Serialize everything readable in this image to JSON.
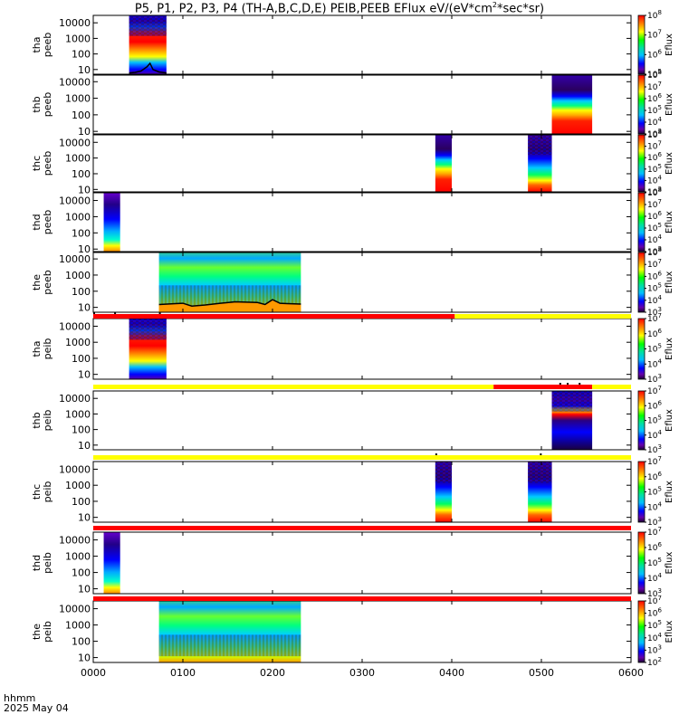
{
  "title_main": "P5, P1, P2, P3, P4 (TH-A,B,C,D,E) PEIB,PEEB EFlux eV/(eV*cm",
  "title_sup": "2",
  "title_end": "*sec*sr)",
  "x_footer": {
    "line1": "hhmm",
    "line2": "2025 May 04"
  },
  "colors": {
    "red": "#ff0000",
    "yellow": "#ffff00",
    "orange": "#ff9900",
    "black": "#000000"
  },
  "chart_data": {
    "type": "heatmap",
    "x_axis": {
      "unit": "hhmm",
      "range_min": [
        0,
        360
      ],
      "tick_labels": [
        "0000",
        "0100",
        "0200",
        "0300",
        "0400",
        "0500",
        "0600"
      ],
      "tick_values_min": [
        0,
        60,
        120,
        180,
        240,
        300,
        360
      ]
    },
    "y_scale": "log",
    "y_tick_labels": [
      "10",
      "100",
      "1000",
      "10000"
    ],
    "colorbar_label": "Eflux",
    "panels": [
      {
        "label": [
          "tha",
          "peeb"
        ],
        "yrange": [
          5,
          30000
        ],
        "yticks": [
          10,
          100,
          1000,
          10000
        ],
        "cbar": [
          5,
          8
        ],
        "blocks": [
          {
            "start_min": 24,
            "end_min": 49,
            "profile": "hot"
          }
        ],
        "line": {
          "points": [
            [
              24,
              6
            ],
            [
              28,
              6.5
            ],
            [
              32,
              8
            ],
            [
              36,
              15
            ],
            [
              38,
              25
            ],
            [
              40,
              10
            ],
            [
              44,
              7
            ],
            [
              49,
              6
            ]
          ]
        }
      },
      {
        "label": [
          "thb",
          "peeb"
        ],
        "yrange": [
          7,
          25000
        ],
        "yticks": [
          10,
          100,
          1000,
          10000
        ],
        "cbar": [
          3,
          8
        ],
        "blocks": [
          {
            "start_min": 307,
            "end_min": 334,
            "profile": "redlow"
          }
        ]
      },
      {
        "label": [
          "thc",
          "peeb"
        ],
        "yrange": [
          7,
          30000
        ],
        "yticks": [
          10,
          100,
          1000,
          10000
        ],
        "cbar": [
          3,
          8
        ],
        "blocks": [
          {
            "start_min": 229,
            "end_min": 240,
            "profile": "redlow"
          },
          {
            "start_min": 291,
            "end_min": 307,
            "profile": "cold"
          }
        ]
      },
      {
        "label": [
          "thd",
          "peeb"
        ],
        "yrange": [
          7,
          30000
        ],
        "yticks": [
          10,
          100,
          1000,
          10000
        ],
        "cbar": [
          3,
          8
        ],
        "blocks": [
          {
            "start_min": 7,
            "end_min": 18,
            "profile": "warm"
          }
        ]
      },
      {
        "label": [
          "the",
          "peeb"
        ],
        "yrange": [
          5,
          25000
        ],
        "yticks": [
          10,
          100,
          1000,
          10000
        ],
        "cbar": [
          3,
          8
        ],
        "blocks": [
          {
            "start_min": 44,
            "end_min": 139,
            "profile": "mixed"
          }
        ],
        "line": {
          "points": [
            [
              44,
              15
            ],
            [
              55,
              17
            ],
            [
              60,
              18
            ],
            [
              66,
              12
            ],
            [
              75,
              14
            ],
            [
              85,
              18
            ],
            [
              95,
              22
            ],
            [
              110,
              20
            ],
            [
              115,
              15
            ],
            [
              120,
              30
            ],
            [
              125,
              18
            ],
            [
              130,
              17
            ],
            [
              139,
              16
            ]
          ]
        }
      },
      {
        "label": [
          "tha",
          "peib"
        ],
        "yrange": [
          5,
          30000
        ],
        "yticks": [
          10,
          100,
          1000,
          10000
        ],
        "cbar": [
          3,
          7
        ],
        "blocks": [
          {
            "start_min": 24,
            "end_min": 49,
            "profile": "hot"
          }
        ]
      },
      {
        "label": [
          "thb",
          "peib"
        ],
        "yrange": [
          5,
          30000
        ],
        "yticks": [
          10,
          100,
          1000,
          10000
        ],
        "cbar": [
          3,
          7
        ],
        "blocks": [
          {
            "start_min": 307,
            "end_min": 334,
            "profile": "striped"
          }
        ]
      },
      {
        "label": [
          "thc",
          "peib"
        ],
        "yrange": [
          5,
          30000
        ],
        "yticks": [
          10,
          100,
          1000,
          10000
        ],
        "cbar": [
          3,
          7
        ],
        "blocks": [
          {
            "start_min": 229,
            "end_min": 240,
            "profile": "cold"
          },
          {
            "start_min": 291,
            "end_min": 307,
            "profile": "cold"
          }
        ]
      },
      {
        "label": [
          "thd",
          "peib"
        ],
        "yrange": [
          5,
          30000
        ],
        "yticks": [
          10,
          100,
          1000,
          10000
        ],
        "cbar": [
          3,
          7
        ],
        "blocks": [
          {
            "start_min": 7,
            "end_min": 18,
            "profile": "warm"
          }
        ]
      },
      {
        "label": [
          "the",
          "peib"
        ],
        "yrange": [
          5,
          30000
        ],
        "yticks": [
          10,
          100,
          1000,
          10000
        ],
        "cbar": [
          2,
          7
        ],
        "blocks": [
          {
            "start_min": 44,
            "end_min": 139,
            "profile": "mixed"
          }
        ]
      }
    ],
    "status_bars": [
      {
        "between_panels": [
          5,
          6
        ],
        "segments": [
          {
            "start_min": 0,
            "end_min": 242,
            "color": "red"
          },
          {
            "start_min": 242,
            "end_min": 360,
            "color": "yellow"
          }
        ],
        "ticks_min": [
          0,
          14,
          44
        ]
      },
      {
        "between_panels": [
          6,
          7
        ],
        "segments": [
          {
            "start_min": 0,
            "end_min": 268,
            "color": "yellow"
          },
          {
            "start_min": 268,
            "end_min": 334,
            "color": "red"
          },
          {
            "start_min": 334,
            "end_min": 360,
            "color": "yellow"
          }
        ],
        "ticks_min": [
          312,
          317,
          325
        ]
      },
      {
        "between_panels": [
          7,
          8
        ],
        "segments": [
          {
            "start_min": 0,
            "end_min": 360,
            "color": "yellow"
          }
        ],
        "ticks_min": [
          229,
          299
        ]
      },
      {
        "between_panels": [
          8,
          9
        ],
        "segments": [
          {
            "start_min": 0,
            "end_min": 360,
            "color": "red"
          }
        ],
        "ticks_min": []
      },
      {
        "between_panels": [
          9,
          10
        ],
        "segments": [
          {
            "start_min": 0,
            "end_min": 360,
            "color": "red"
          }
        ],
        "ticks_min": []
      }
    ]
  }
}
